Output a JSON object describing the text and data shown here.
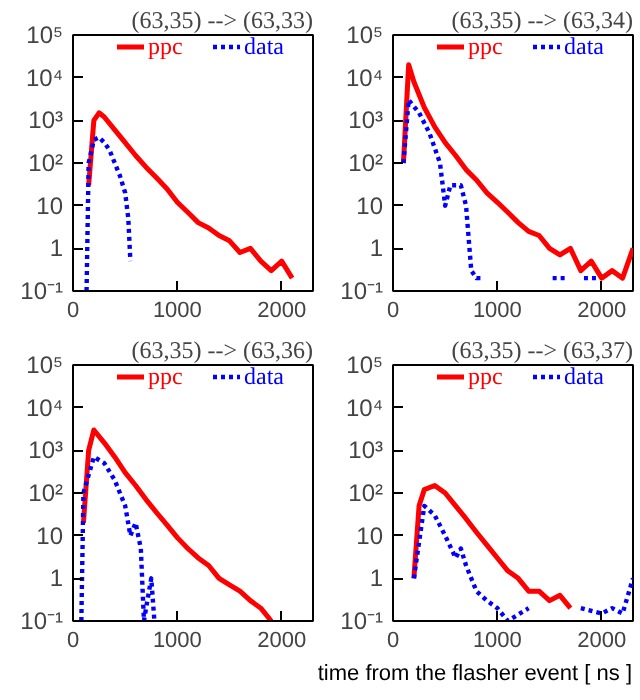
{
  "chart_data": [
    {
      "type": "line",
      "title": "(63,35) --> (63,33)",
      "log": "y",
      "legend": "top",
      "xlim": [
        0,
        2300
      ],
      "ylim": [
        0.1,
        100000
      ],
      "xticks": [
        0,
        1000,
        2000
      ],
      "yticks": [
        {
          "value": 0.1,
          "label": "10⁻¹"
        },
        1,
        10,
        {
          "value": 100,
          "label": "10²"
        },
        {
          "value": 1000,
          "label": "10³"
        },
        {
          "value": 10000,
          "label": "10⁴"
        },
        {
          "value": 100000,
          "label": "10⁵"
        }
      ],
      "series": [
        {
          "name": "ppc",
          "color": "#ff0000",
          "line_style": "solid",
          "x": [
            150,
            200,
            250,
            300,
            400,
            500,
            600,
            700,
            800,
            900,
            1000,
            1100,
            1200,
            1300,
            1400,
            1500,
            1600,
            1700,
            1800,
            1900,
            2000,
            2100
          ],
          "values": [
            30,
            1000,
            1500,
            1200,
            600,
            300,
            150,
            80,
            45,
            25,
            12,
            7,
            4,
            3,
            2,
            1.5,
            0.8,
            1,
            0.5,
            0.3,
            0.5,
            0.2
          ]
        },
        {
          "name": "data",
          "color": "#0000ff",
          "line_style": "dotted",
          "x": [
            130,
            150,
            200,
            250,
            300,
            350,
            400,
            450,
            500,
            530,
            550
          ],
          "values": [
            0.1,
            100,
            350,
            400,
            300,
            200,
            100,
            50,
            20,
            5,
            0.5
          ]
        }
      ]
    },
    {
      "type": "line",
      "title": "(63,35) --> (63,34)",
      "log": "y",
      "legend": "top",
      "xlim": [
        0,
        2300
      ],
      "ylim": [
        0.1,
        100000
      ],
      "xticks": [
        0,
        1000,
        2000
      ],
      "yticks": [
        {
          "value": 0.1,
          "label": "10⁻¹"
        },
        1,
        10,
        {
          "value": 100,
          "label": "10²"
        },
        {
          "value": 1000,
          "label": "10³"
        },
        {
          "value": 10000,
          "label": "10⁴"
        },
        {
          "value": 100000,
          "label": "10⁵"
        }
      ],
      "series": [
        {
          "name": "ppc",
          "color": "#ff0000",
          "line_style": "solid",
          "x": [
            100,
            150,
            200,
            300,
            400,
            500,
            600,
            700,
            800,
            900,
            1000,
            1100,
            1200,
            1300,
            1400,
            1500,
            1600,
            1700,
            1800,
            1900,
            2000,
            2100,
            2200,
            2300
          ],
          "values": [
            100,
            20000,
            8000,
            2000,
            700,
            300,
            150,
            70,
            40,
            20,
            12,
            7,
            4,
            2.5,
            2,
            1,
            0.7,
            1,
            0.3,
            0.5,
            0.2,
            0.3,
            0.2,
            1
          ]
        },
        {
          "name": "data",
          "color": "#0000ff",
          "line_style": "dotted",
          "x": [
            100,
            150,
            250,
            350,
            450,
            500,
            550,
            650,
            700,
            750,
            800,
            850,
            900,
            1530,
            1670,
            1750,
            1830,
            1970
          ],
          "values": [
            100,
            3000,
            1500,
            500,
            100,
            10,
            30,
            30,
            10,
            0.3,
            0.2,
            0.2,
            null,
            0.2,
            0.2,
            null,
            0.2,
            0.2
          ]
        }
      ]
    },
    {
      "type": "line",
      "title": "(63,35) --> (63,36)",
      "log": "y",
      "legend": "top",
      "xlim": [
        0,
        2300
      ],
      "ylim": [
        0.1,
        100000
      ],
      "xticks": [
        0,
        1000,
        2000
      ],
      "yticks": [
        {
          "value": 0.1,
          "label": "10⁻¹"
        },
        1,
        10,
        {
          "value": 100,
          "label": "10²"
        },
        {
          "value": 1000,
          "label": "10³"
        },
        {
          "value": 10000,
          "label": "10⁴"
        },
        {
          "value": 100000,
          "label": "10⁵"
        }
      ],
      "series": [
        {
          "name": "ppc",
          "color": "#ff0000",
          "line_style": "solid",
          "x": [
            100,
            150,
            200,
            300,
            400,
            500,
            600,
            700,
            800,
            900,
            1000,
            1100,
            1200,
            1300,
            1400,
            1500,
            1600,
            1700,
            1800,
            1900
          ],
          "values": [
            20,
            1000,
            3000,
            1500,
            700,
            300,
            150,
            70,
            35,
            18,
            9,
            5,
            3,
            2,
            1,
            0.7,
            0.5,
            0.3,
            0.2,
            0.1
          ]
        },
        {
          "name": "data",
          "color": "#0000ff",
          "line_style": "dotted",
          "x": [
            80,
            100,
            200,
            300,
            400,
            500,
            550,
            600,
            650,
            680,
            700,
            750,
            780
          ],
          "values": [
            0.1,
            100,
            700,
            500,
            200,
            50,
            10,
            20,
            5,
            0.1,
            0.2,
            1,
            0.1
          ]
        }
      ]
    },
    {
      "type": "line",
      "title": "(63,35) --> (63,37)",
      "xlabel": "time from the flasher event [ ns ]",
      "log": "y",
      "legend": "top",
      "xlim": [
        0,
        2300
      ],
      "ylim": [
        0.1,
        100000
      ],
      "xticks": [
        0,
        1000,
        2000
      ],
      "yticks": [
        {
          "value": 0.1,
          "label": "10⁻¹"
        },
        1,
        10,
        {
          "value": 100,
          "label": "10²"
        },
        {
          "value": 1000,
          "label": "10³"
        },
        {
          "value": 10000,
          "label": "10⁴"
        },
        {
          "value": 100000,
          "label": "10⁵"
        }
      ],
      "series": [
        {
          "name": "ppc",
          "color": "#ff0000",
          "line_style": "solid",
          "x": [
            200,
            250,
            300,
            400,
            500,
            600,
            700,
            800,
            900,
            1000,
            1100,
            1200,
            1300,
            1400,
            1500,
            1600,
            1700
          ],
          "values": [
            1,
            50,
            120,
            150,
            100,
            50,
            25,
            12,
            6,
            3,
            1.5,
            1,
            0.5,
            0.5,
            0.3,
            0.4,
            0.2
          ]
        },
        {
          "name": "data",
          "color": "#0000ff",
          "line_style": "dotted",
          "x": [
            200,
            300,
            400,
            500,
            600,
            650,
            700,
            800,
            900,
            1000,
            1100,
            1300,
            1500,
            1800,
            2000,
            2100,
            2200,
            2300
          ],
          "values": [
            1,
            50,
            30,
            10,
            3,
            5,
            2,
            0.5,
            0.3,
            0.2,
            0.1,
            0.2,
            null,
            0.2,
            0.15,
            0.2,
            0.15,
            1
          ]
        }
      ]
    }
  ]
}
